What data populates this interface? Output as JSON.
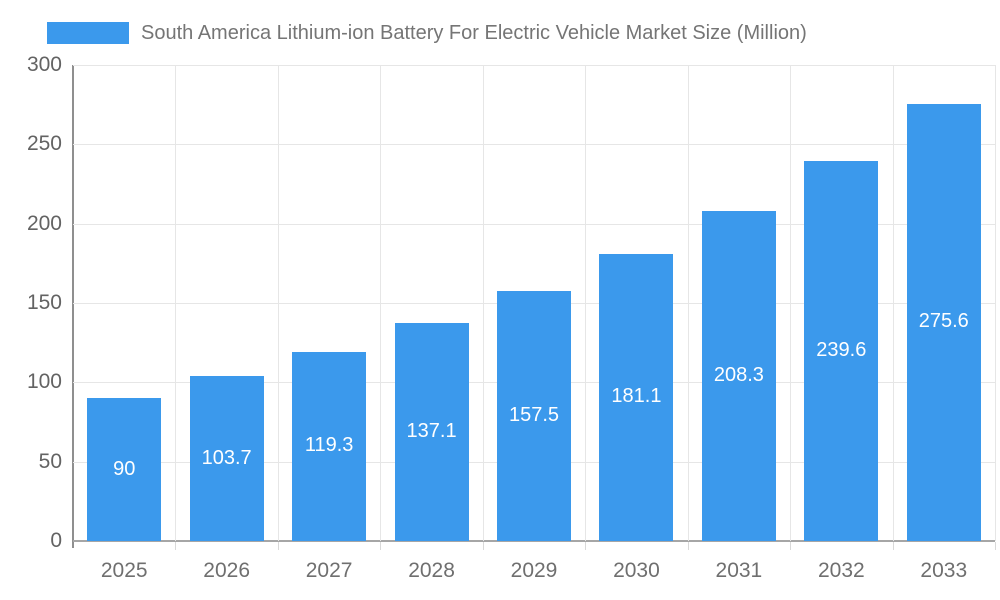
{
  "legend": {
    "series_label": "South America Lithium-ion Battery For Electric Vehicle Market Size (Million)"
  },
  "colors": {
    "bar": "#3b99ec",
    "gridline": "#e6e6e6",
    "axis_line": "#a6a6a6",
    "tick_text": "#6f6f6f",
    "bar_label_text": "#ffffff",
    "title_text": "#757575"
  },
  "chart_data": {
    "type": "bar",
    "title": "South America Lithium-ion Battery For Electric Vehicle Market Size (Million)",
    "categories": [
      "2025",
      "2026",
      "2027",
      "2028",
      "2029",
      "2030",
      "2031",
      "2032",
      "2033"
    ],
    "values": [
      90,
      103.7,
      119.3,
      137.1,
      157.5,
      181.1,
      208.3,
      239.6,
      275.6
    ],
    "value_labels": [
      "90",
      "103.7",
      "119.3",
      "137.1",
      "157.5",
      "181.1",
      "208.3",
      "239.6",
      "275.6"
    ],
    "xlabel": "",
    "ylabel": "",
    "ylim": [
      0,
      300
    ],
    "ytick_interval": 50,
    "ytick_labels": [
      "0",
      "50",
      "100",
      "150",
      "200",
      "250",
      "300"
    ],
    "grid": true,
    "legend_position": "top",
    "bar_label_position": "inside-center"
  }
}
